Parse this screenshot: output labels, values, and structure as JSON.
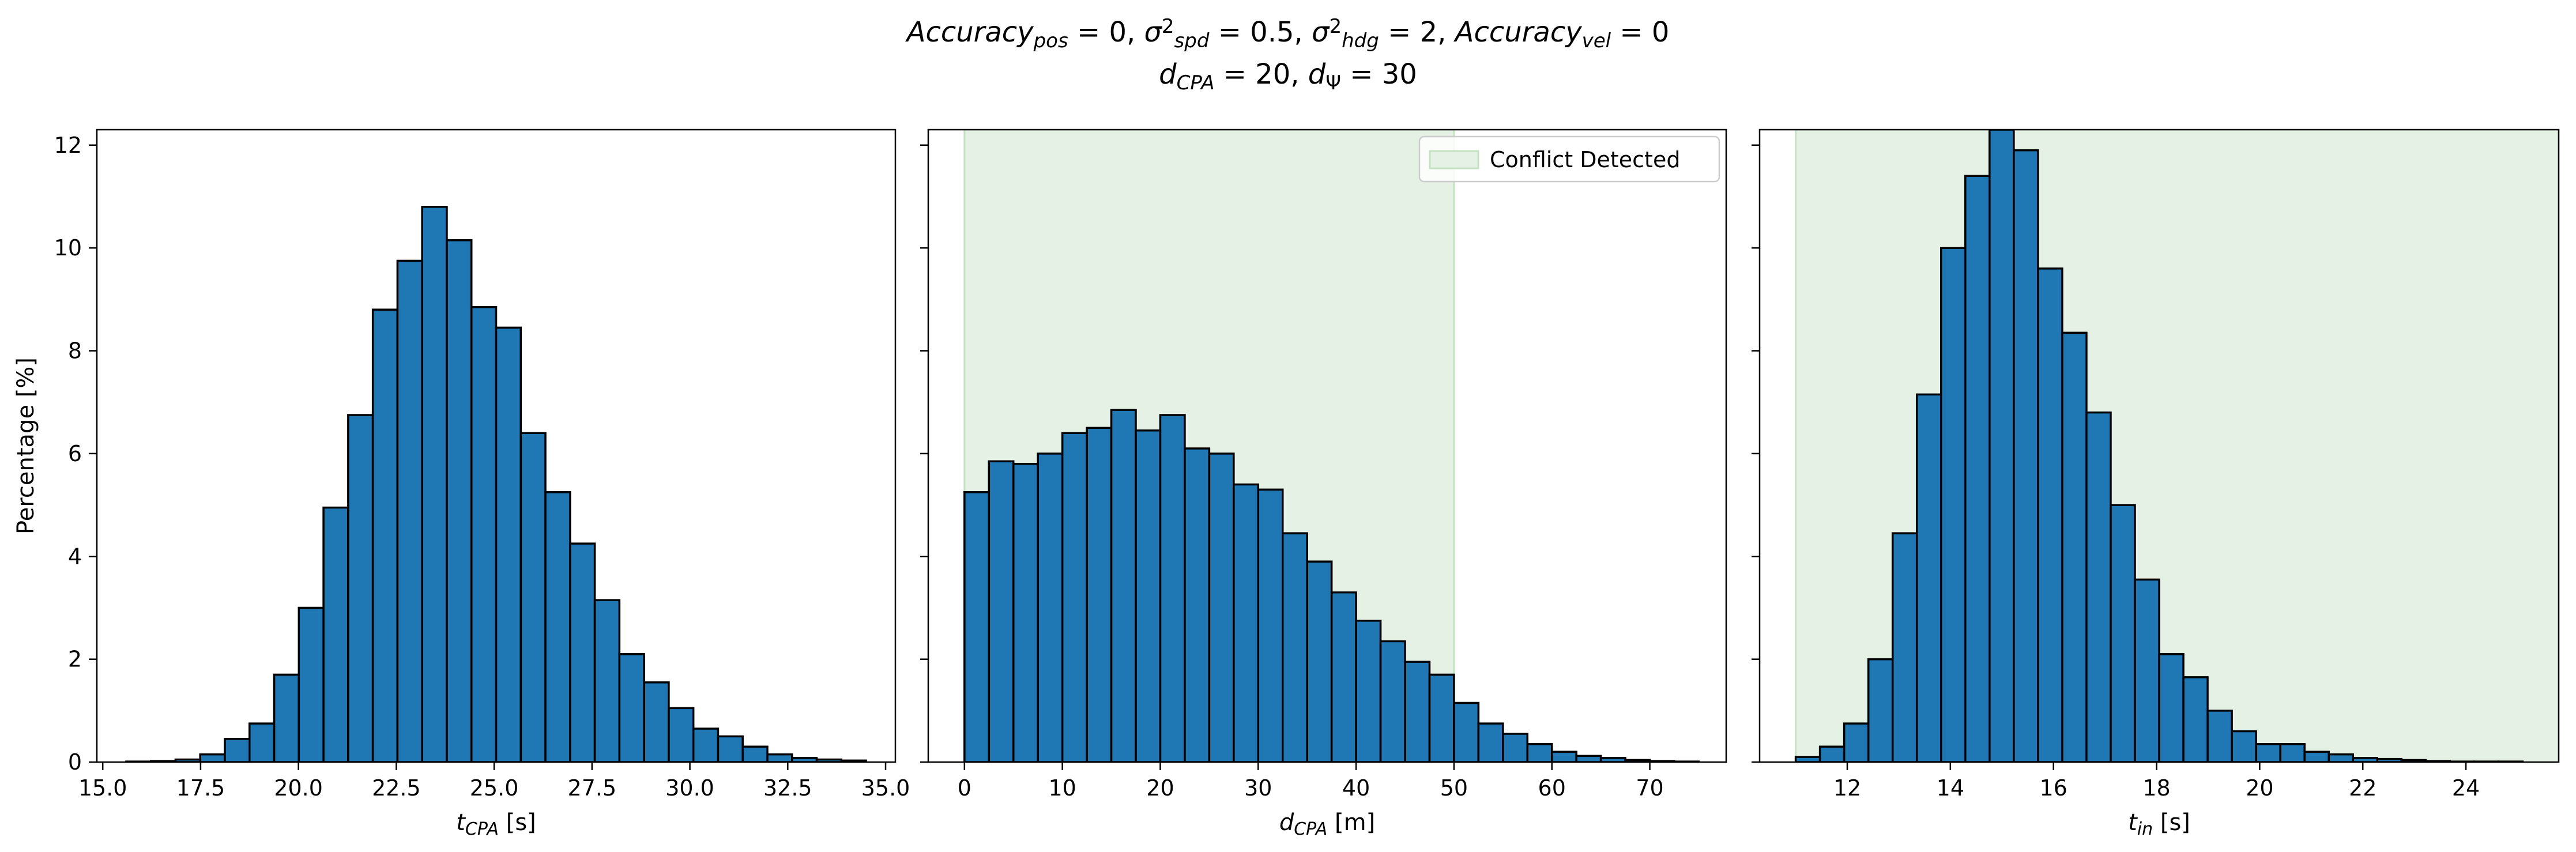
{
  "figure": {
    "title_line1": {
      "parts": [
        {
          "t": "Accuracy",
          "i": true
        },
        {
          "t": "pos",
          "i": true,
          "sub": true
        },
        {
          "t": " = 0, "
        },
        {
          "t": "σ",
          "i": true
        },
        {
          "t": "2",
          "sup": true
        },
        {
          "t": "spd",
          "i": true,
          "sub": true
        },
        {
          "t": " = 0.5, "
        },
        {
          "t": "σ",
          "i": true
        },
        {
          "t": "2",
          "sup": true
        },
        {
          "t": "hdg",
          "i": true,
          "sub": true
        },
        {
          "t": " = 2, "
        },
        {
          "t": "Accuracy",
          "i": true
        },
        {
          "t": "vel",
          "i": true,
          "sub": true
        },
        {
          "t": " = 0"
        }
      ]
    },
    "title_line2": {
      "parts": [
        {
          "t": "d",
          "i": true
        },
        {
          "t": "CPA",
          "i": true,
          "sub": true
        },
        {
          "t": " = 20, "
        },
        {
          "t": "d",
          "i": true
        },
        {
          "t": "Ψ",
          "sub": true
        },
        {
          "t": " = 30"
        }
      ]
    },
    "shared_ylabel": "Percentage [%]",
    "colors": {
      "bar": "#1f77b4",
      "edge": "#000000",
      "shade": "#e5f1e4",
      "shade_edge": "#c4e2c2"
    }
  },
  "chart_data": [
    {
      "type": "bar",
      "xlabel": {
        "main": "t",
        "sub": "CPA",
        "unit": " [s]"
      },
      "ylabel": "Percentage [%]",
      "xlim": [
        14.85,
        35.25
      ],
      "ylim": [
        0,
        12.3
      ],
      "xticks": [
        15.0,
        17.5,
        20.0,
        22.5,
        25.0,
        27.5,
        30.0,
        32.5,
        35.0
      ],
      "xtick_labels": [
        "15.0",
        "17.5",
        "20.0",
        "22.5",
        "25.0",
        "27.5",
        "30.0",
        "32.5",
        "35.0"
      ],
      "yticks": [
        0,
        2,
        4,
        6,
        8,
        10,
        12
      ],
      "ytick_labels": [
        "0",
        "2",
        "4",
        "6",
        "8",
        "10",
        "12"
      ],
      "bin_start": 15.6,
      "bin_width": 0.63,
      "values": [
        0.01,
        0.02,
        0.05,
        0.15,
        0.45,
        0.75,
        1.7,
        3.0,
        4.95,
        6.75,
        8.8,
        9.75,
        10.8,
        10.15,
        8.85,
        8.45,
        6.4,
        5.25,
        4.25,
        3.15,
        2.1,
        1.55,
        1.05,
        0.65,
        0.5,
        0.3,
        0.15,
        0.08,
        0.05,
        0.03
      ]
    },
    {
      "type": "bar",
      "xlabel": {
        "main": "d",
        "sub": "CPA",
        "unit": " [m]"
      },
      "xlim": [
        -3.7,
        77.8
      ],
      "ylim": [
        0,
        12.3
      ],
      "xticks": [
        0,
        10,
        20,
        30,
        40,
        50,
        60,
        70
      ],
      "xtick_labels": [
        "0",
        "10",
        "20",
        "30",
        "40",
        "50",
        "60",
        "70"
      ],
      "yticks": [
        0,
        2,
        4,
        6,
        8,
        10,
        12
      ],
      "bin_start": 0,
      "bin_width": 2.5,
      "values": [
        5.25,
        5.85,
        5.8,
        6.0,
        6.4,
        6.5,
        6.85,
        6.45,
        6.75,
        6.1,
        6.0,
        5.4,
        5.3,
        4.45,
        3.9,
        3.3,
        2.75,
        2.35,
        1.95,
        1.7,
        1.15,
        0.75,
        0.55,
        0.35,
        0.2,
        0.12,
        0.08,
        0.04,
        0.02,
        0.01
      ],
      "conflict_region": [
        0,
        50
      ],
      "legend": {
        "label": "Conflict Detected",
        "placement": "upper right"
      }
    },
    {
      "type": "bar",
      "xlabel": {
        "main": "t",
        "sub": "in",
        "unit": " [s]"
      },
      "xlim": [
        10.3,
        25.8
      ],
      "ylim": [
        0,
        12.3
      ],
      "xticks": [
        12,
        14,
        16,
        18,
        20,
        22,
        24
      ],
      "xtick_labels": [
        "12",
        "14",
        "16",
        "18",
        "20",
        "22",
        "24"
      ],
      "yticks": [
        0,
        2,
        4,
        6,
        8,
        10,
        12
      ],
      "bin_start": 11.0,
      "bin_width": 0.47,
      "values": [
        0.1,
        0.3,
        0.75,
        2.0,
        4.45,
        7.15,
        10.0,
        11.4,
        12.3,
        11.9,
        9.6,
        8.35,
        6.8,
        5.0,
        3.55,
        2.1,
        1.65,
        1.0,
        0.6,
        0.35,
        0.35,
        0.2,
        0.15,
        0.08,
        0.06,
        0.04,
        0.02,
        0.01,
        0.01,
        0.01
      ],
      "conflict_region": [
        11.0,
        25.8
      ]
    }
  ]
}
